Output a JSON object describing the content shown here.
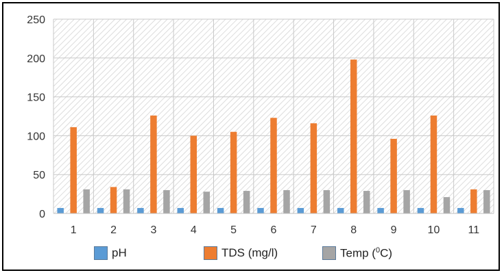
{
  "chart_data": {
    "type": "bar",
    "categories": [
      "1",
      "2",
      "3",
      "4",
      "5",
      "6",
      "7",
      "8",
      "9",
      "10",
      "11"
    ],
    "series": [
      {
        "name": "pH",
        "color": "#5b9bd5",
        "values": [
          7,
          7,
          7,
          7,
          7,
          7,
          7,
          7,
          7,
          7,
          7
        ]
      },
      {
        "name": "TDS (mg/l)",
        "color": "#ed7d31",
        "values": [
          111,
          34,
          126,
          100,
          105,
          123,
          116,
          198,
          96,
          126,
          31
        ]
      },
      {
        "name": "Temp (°C)",
        "color": "#a5a5a5",
        "values": [
          31,
          31,
          30,
          28,
          29,
          30,
          30,
          29,
          30,
          21,
          30
        ]
      }
    ],
    "yticks": [
      "0",
      "50",
      "100",
      "150",
      "200",
      "250"
    ],
    "ylim": [
      0,
      250
    ],
    "grid": true,
    "legend_position": "bottom",
    "plot_background": "hatched"
  },
  "legend": {
    "ph": "pH",
    "tds": "TDS (mg/l)",
    "temp_prefix": "Temp (",
    "temp_sup": "0",
    "temp_suffix": "C)"
  }
}
